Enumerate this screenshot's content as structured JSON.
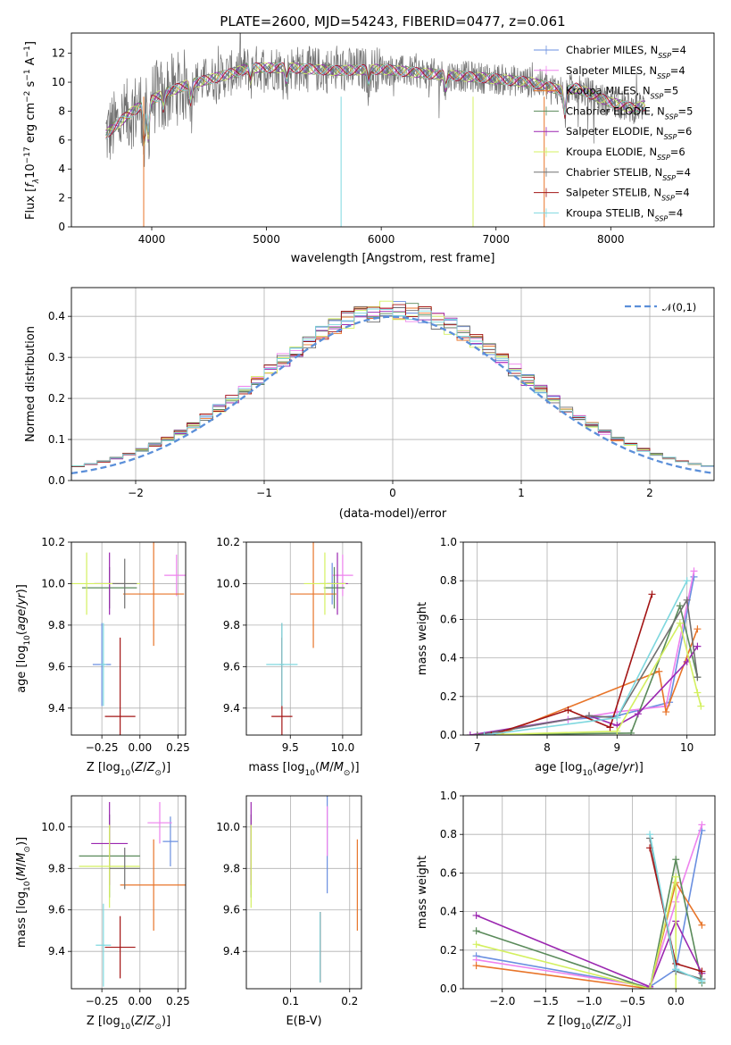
{
  "figure": {
    "title": "PLATE=2600, MJD=54243, FIBERID=0477, z=0.061"
  },
  "series": [
    {
      "name": "Chabrier MILES",
      "nssp": "4",
      "color": "#6a8fe0"
    },
    {
      "name": "Salpeter MILES",
      "nssp": "4",
      "color": "#ee82ee"
    },
    {
      "name": "Kroupa MILES",
      "nssp": "5",
      "color": "#e8752a"
    },
    {
      "name": "Chabrier ELODIE",
      "nssp": "5",
      "color": "#5a8a5a"
    },
    {
      "name": "Salpeter ELODIE",
      "nssp": "6",
      "color": "#9b27b0"
    },
    {
      "name": "Kroupa ELODIE",
      "nssp": "6",
      "color": "#d4f060"
    },
    {
      "name": "Chabrier STELIB",
      "nssp": "4",
      "color": "#707070"
    },
    {
      "name": "Salpeter STELIB",
      "nssp": "4",
      "color": "#a31515"
    },
    {
      "name": "Kroupa STELIB",
      "nssp": "4",
      "color": "#7fd8df"
    }
  ],
  "chart_data": [
    {
      "id": "spectrum",
      "type": "line",
      "xlabel": "wavelength [Angstrom, rest frame]",
      "ylabel": "Flux [f_λ 10^-17 erg cm^-2 s^-1 A^-1]",
      "xlim": [
        3300,
        8900
      ],
      "ylim": [
        0,
        13.4
      ],
      "xticks": [
        4000,
        5000,
        6000,
        7000,
        8000
      ],
      "yticks": [
        0,
        2,
        4,
        6,
        8,
        10,
        12
      ],
      "continuum": [
        [
          3600,
          6.4
        ],
        [
          3800,
          7.8
        ],
        [
          3950,
          8.6
        ],
        [
          4100,
          9.2
        ],
        [
          4300,
          9.8
        ],
        [
          4600,
          10.4
        ],
        [
          4860,
          11.0
        ],
        [
          5200,
          11.0
        ],
        [
          5600,
          10.8
        ],
        [
          6000,
          10.9
        ],
        [
          6400,
          10.6
        ],
        [
          6900,
          10.3
        ],
        [
          7300,
          10.0
        ],
        [
          7600,
          9.4
        ],
        [
          7700,
          9.6
        ],
        [
          8000,
          8.6
        ],
        [
          8200,
          8.2
        ],
        [
          8300,
          8.4
        ]
      ],
      "grid": false,
      "legend_position": "upper right"
    },
    {
      "id": "residual_hist",
      "type": "step",
      "xlabel": "(data-model)/error",
      "ylabel": "Normed distribution",
      "xlim": [
        -2.5,
        2.5
      ],
      "ylim": [
        0,
        0.47
      ],
      "xticks": [
        -2,
        -1,
        0,
        1,
        2
      ],
      "yticks": [
        0.0,
        0.1,
        0.2,
        0.3,
        0.4
      ],
      "gaussian": {
        "name": "𝒩(0,1)",
        "mean": 0,
        "sigma": 1,
        "color": "#5b8fd9"
      },
      "grid": true,
      "legend_position": "upper right"
    },
    {
      "id": "age_vs_Z",
      "type": "errorbar",
      "xlabel": "Z [log10(Z/Z☉)]",
      "ylabel": "age [log10(age/yr)]",
      "xlim": [
        -0.45,
        0.3
      ],
      "ylim": [
        9.27,
        10.2
      ],
      "xticks": [
        -0.25,
        0.0,
        0.25
      ],
      "yticks": [
        9.4,
        9.6,
        9.8,
        10.0,
        10.2
      ],
      "points": [
        {
          "s": 0,
          "x": -0.25,
          "y": 9.61,
          "xe": 0.06,
          "ye": 0.2
        },
        {
          "s": 1,
          "x": 0.24,
          "y": 10.04,
          "xe": 0.08,
          "ye": 0.1
        },
        {
          "s": 2,
          "x": 0.09,
          "y": 9.95,
          "xe": 0.2,
          "ye": 0.25
        },
        {
          "s": 3,
          "x": -0.2,
          "y": 9.98,
          "xe": 0.18,
          "ye": 0.1
        },
        {
          "s": 4,
          "x": -0.2,
          "y": 10.0,
          "xe": 0.1,
          "ye": 0.15
        },
        {
          "s": 5,
          "x": -0.35,
          "y": 10.0,
          "xe": 0.35,
          "ye": 0.15
        },
        {
          "s": 6,
          "x": -0.1,
          "y": 10.0,
          "xe": 0.08,
          "ye": 0.12
        },
        {
          "s": 7,
          "x": -0.13,
          "y": 9.36,
          "xe": 0.1,
          "ye": 0.38
        },
        {
          "s": 8,
          "x": -0.24,
          "y": 9.61,
          "xe": 0.02,
          "ye": 0.2
        }
      ]
    },
    {
      "id": "age_vs_mass",
      "type": "errorbar",
      "xlabel": "mass [log10(M/M☉)]",
      "ylabel": "",
      "xlim": [
        9.08,
        10.18
      ],
      "ylim": [
        9.27,
        10.2
      ],
      "xticks": [
        9.5,
        10.0
      ],
      "yticks": [
        9.4,
        9.6,
        9.8,
        10.0,
        10.2
      ],
      "points": [
        {
          "s": 0,
          "x": 9.9,
          "y": 10.0,
          "xe": 0.12,
          "ye": 0.1
        },
        {
          "s": 1,
          "x": 10.0,
          "y": 10.04,
          "xe": 0.1,
          "ye": 0.1
        },
        {
          "s": 2,
          "x": 9.72,
          "y": 9.95,
          "xe": 0.22,
          "ye": 0.26
        },
        {
          "s": 3,
          "x": 9.92,
          "y": 9.98,
          "xe": 0.1,
          "ye": 0.1
        },
        {
          "s": 4,
          "x": 9.95,
          "y": 10.0,
          "xe": 0.1,
          "ye": 0.15
        },
        {
          "s": 5,
          "x": 9.83,
          "y": 10.0,
          "xe": 0.2,
          "ye": 0.15
        },
        {
          "s": 6,
          "x": 9.42,
          "y": 9.61,
          "xe": 0.02,
          "ye": 0.2
        },
        {
          "s": 7,
          "x": 9.42,
          "y": 9.36,
          "xe": 0.1,
          "ye": 0.38
        },
        {
          "s": 8,
          "x": 9.42,
          "y": 9.61,
          "xe": 0.15,
          "ye": 0.2
        }
      ]
    },
    {
      "id": "mass_weight_vs_age",
      "type": "line",
      "xlabel": "age [log10(age/yr)]",
      "ylabel": "mass weight",
      "xlim": [
        6.8,
        10.4
      ],
      "ylim": [
        0,
        1.0
      ],
      "xticks": [
        7,
        8,
        9,
        10
      ],
      "yticks": [
        0.0,
        0.2,
        0.4,
        0.6,
        0.8,
        1.0
      ],
      "lines": [
        {
          "s": 0,
          "pts": [
            [
              7.0,
              0.0
            ],
            [
              8.3,
              0.08
            ],
            [
              9.0,
              0.1
            ],
            [
              9.75,
              0.17
            ],
            [
              10.1,
              0.82
            ]
          ]
        },
        {
          "s": 1,
          "pts": [
            [
              7.0,
              0.0
            ],
            [
              8.3,
              0.08
            ],
            [
              9.0,
              0.12
            ],
            [
              9.7,
              0.15
            ],
            [
              10.1,
              0.85
            ]
          ]
        },
        {
          "s": 2,
          "pts": [
            [
              7.3,
              0.0
            ],
            [
              9.6,
              0.33
            ],
            [
              9.7,
              0.12
            ],
            [
              10.15,
              0.55
            ]
          ]
        },
        {
          "s": 3,
          "pts": [
            [
              7.0,
              0.0
            ],
            [
              9.2,
              0.01
            ],
            [
              9.9,
              0.67
            ],
            [
              10.15,
              0.3
            ]
          ]
        },
        {
          "s": 4,
          "pts": [
            [
              6.9,
              0.0
            ],
            [
              8.6,
              0.1
            ],
            [
              9.0,
              0.05
            ],
            [
              9.3,
              0.11
            ],
            [
              10.0,
              0.38
            ],
            [
              10.15,
              0.46
            ]
          ]
        },
        {
          "s": 5,
          "pts": [
            [
              7.0,
              0.0
            ],
            [
              9.0,
              0.02
            ],
            [
              9.9,
              0.58
            ],
            [
              10.15,
              0.22
            ],
            [
              10.2,
              0.15
            ]
          ]
        },
        {
          "s": 6,
          "pts": [
            [
              7.0,
              0.0
            ],
            [
              8.6,
              0.1
            ],
            [
              9.0,
              0.09
            ],
            [
              10.0,
              0.7
            ],
            [
              10.15,
              0.3
            ]
          ]
        },
        {
          "s": 7,
          "pts": [
            [
              7.2,
              0.0
            ],
            [
              8.3,
              0.13
            ],
            [
              8.9,
              0.04
            ],
            [
              9.5,
              0.73
            ]
          ]
        },
        {
          "s": 8,
          "pts": [
            [
              7.1,
              0.0
            ],
            [
              9.0,
              0.09
            ],
            [
              10.0,
              0.8
            ]
          ]
        }
      ]
    },
    {
      "id": "mass_vs_Z",
      "type": "errorbar",
      "xlabel": "Z [log10(Z/Z☉)]",
      "ylabel": "mass [log10(M/M☉)]",
      "xlim": [
        -0.45,
        0.3
      ],
      "ylim": [
        9.22,
        10.15
      ],
      "xticks": [
        -0.25,
        0.0,
        0.25
      ],
      "yticks": [
        9.4,
        9.6,
        9.8,
        10.0
      ],
      "points": [
        {
          "s": 0,
          "x": 0.2,
          "y": 9.93,
          "xe": 0.05,
          "ye": 0.12
        },
        {
          "s": 1,
          "x": 0.13,
          "y": 10.02,
          "xe": 0.08,
          "ye": 0.1
        },
        {
          "s": 2,
          "x": 0.09,
          "y": 9.72,
          "xe": 0.22,
          "ye": 0.22
        },
        {
          "s": 3,
          "x": -0.2,
          "y": 9.86,
          "xe": 0.2,
          "ye": 0.2
        },
        {
          "s": 4,
          "x": -0.2,
          "y": 9.92,
          "xe": 0.12,
          "ye": 0.2
        },
        {
          "s": 5,
          "x": -0.2,
          "y": 9.81,
          "xe": 0.2,
          "ye": 0.2
        },
        {
          "s": 6,
          "x": -0.1,
          "y": 9.8,
          "xe": 0.1,
          "ye": 0.1
        },
        {
          "s": 7,
          "x": -0.13,
          "y": 9.42,
          "xe": 0.1,
          "ye": 0.15
        },
        {
          "s": 8,
          "x": -0.24,
          "y": 9.43,
          "xe": 0.05,
          "ye": 0.2
        }
      ]
    },
    {
      "id": "mass_vs_ebv",
      "type": "errorbar",
      "xlabel": "E(B-V)",
      "ylabel": "",
      "xlim": [
        0.025,
        0.22
      ],
      "ylim": [
        9.22,
        10.15
      ],
      "xticks": [
        0.1,
        0.2
      ],
      "yticks": [
        9.4,
        9.6,
        9.8,
        10.0
      ],
      "points": [
        {
          "s": 0,
          "x": 0.162,
          "y": 9.92,
          "xe": 0,
          "ye": 0.24
        },
        {
          "s": 1,
          "x": 0.162,
          "y": 9.98,
          "xe": 0,
          "ye": 0.12
        },
        {
          "s": 2,
          "x": 0.213,
          "y": 9.72,
          "xe": 0,
          "ye": 0.22
        },
        {
          "s": 3,
          "x": 0.033,
          "y": 9.86,
          "xe": 0,
          "ye": 0.2
        },
        {
          "s": 4,
          "x": 0.033,
          "y": 9.92,
          "xe": 0,
          "ye": 0.2
        },
        {
          "s": 5,
          "x": 0.033,
          "y": 9.81,
          "xe": 0,
          "ye": 0.2
        },
        {
          "s": 6,
          "x": 0.15,
          "y": 9.42,
          "xe": 0,
          "ye": 0.17
        },
        {
          "s": 7,
          "x": 0.15,
          "y": 9.42,
          "xe": 0,
          "ye": 0.17
        },
        {
          "s": 8,
          "x": 0.15,
          "y": 9.42,
          "xe": 0,
          "ye": 0.17
        }
      ]
    },
    {
      "id": "mass_weight_vs_Z",
      "type": "line",
      "xlabel": "Z [log10(Z/Z☉)]",
      "ylabel": "mass weight",
      "xlim": [
        -2.45,
        0.45
      ],
      "ylim": [
        0,
        1.0
      ],
      "xticks": [
        -2.0,
        -1.5,
        -1.0,
        -0.5,
        0.0
      ],
      "yticks": [
        0.0,
        0.2,
        0.4,
        0.6,
        0.8,
        1.0
      ],
      "lines": [
        {
          "s": 0,
          "pts": [
            [
              -2.3,
              0.17
            ],
            [
              -0.3,
              0.01
            ],
            [
              0.0,
              0.1
            ],
            [
              0.3,
              0.82
            ]
          ]
        },
        {
          "s": 1,
          "pts": [
            [
              -2.3,
              0.15
            ],
            [
              -0.3,
              0.01
            ],
            [
              0.0,
              0.45
            ],
            [
              0.3,
              0.85
            ]
          ]
        },
        {
          "s": 2,
          "pts": [
            [
              -2.3,
              0.12
            ],
            [
              -0.3,
              0.0
            ],
            [
              0.0,
              0.55
            ],
            [
              0.3,
              0.33
            ]
          ]
        },
        {
          "s": 3,
          "pts": [
            [
              -2.3,
              0.3
            ],
            [
              -0.3,
              0.0
            ],
            [
              0.0,
              0.67
            ],
            [
              0.3,
              0.03
            ]
          ]
        },
        {
          "s": 4,
          "pts": [
            [
              -2.3,
              0.38
            ],
            [
              -0.3,
              0.01
            ],
            [
              0.0,
              0.35
            ],
            [
              0.3,
              0.08
            ]
          ]
        },
        {
          "s": 5,
          "pts": [
            [
              -2.3,
              0.23
            ],
            [
              -0.3,
              0.0
            ],
            [
              0.0,
              0.58
            ],
            [
              0.0,
              0.0
            ]
          ]
        },
        {
          "s": 6,
          "pts": [
            [
              -0.3,
              0.78
            ],
            [
              0.0,
              0.09
            ],
            [
              0.3,
              0.05
            ]
          ]
        },
        {
          "s": 7,
          "pts": [
            [
              -0.3,
              0.73
            ],
            [
              0.0,
              0.13
            ],
            [
              0.3,
              0.09
            ]
          ]
        },
        {
          "s": 8,
          "pts": [
            [
              -0.3,
              0.8
            ],
            [
              0.0,
              0.1
            ],
            [
              0.3,
              0.04
            ]
          ]
        }
      ]
    }
  ]
}
